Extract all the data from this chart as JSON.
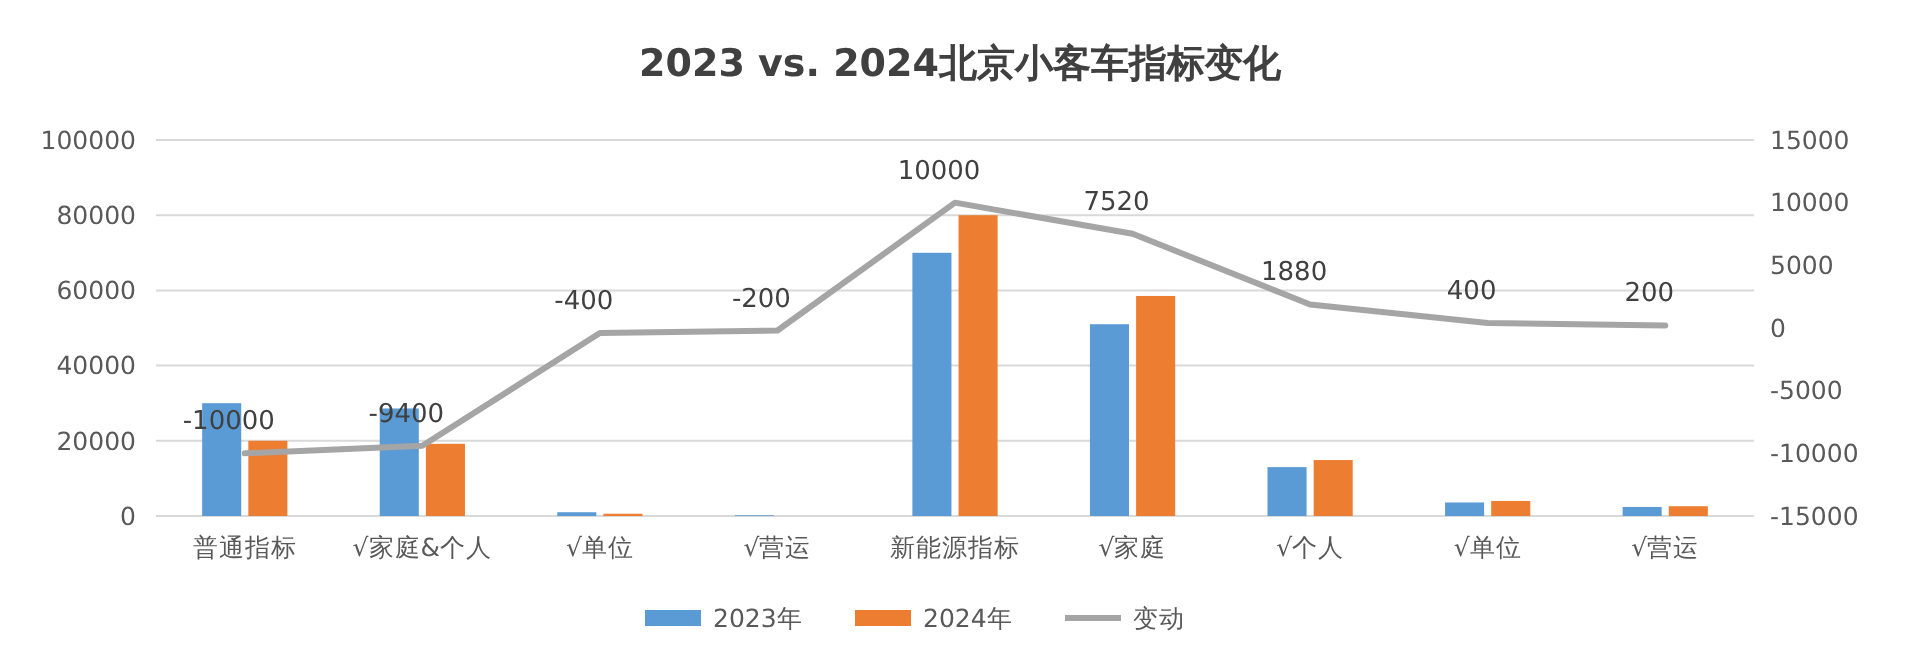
{
  "chart_data": {
    "type": "bar",
    "title": "2023 vs. 2024北京小客车指标变化",
    "categories": [
      "普通指标",
      "√家庭&个人",
      "√单位",
      "√营运",
      "新能源指标",
      "√家庭",
      "√个人",
      "√单位",
      "√营运"
    ],
    "series": [
      {
        "name": "2023年",
        "color": "#5b9bd5",
        "values": [
          30000,
          28600,
          1000,
          200,
          70000,
          51000,
          13000,
          3600,
          2400
        ]
      },
      {
        "name": "2024年",
        "color": "#ed7d31",
        "values": [
          20000,
          19200,
          600,
          0,
          80000,
          58520,
          14880,
          4000,
          2600
        ]
      },
      {
        "name": "变动",
        "type": "line",
        "axis": "y2",
        "color": "#a5a5a5",
        "values": [
          -10000,
          -9400,
          -400,
          -200,
          10000,
          7520,
          1880,
          400,
          200
        ],
        "data_labels": true
      }
    ],
    "ylim": [
      0,
      100000
    ],
    "yticks": [
      0,
      20000,
      40000,
      60000,
      80000,
      100000
    ],
    "y2lim": [
      -15000,
      15000
    ],
    "y2ticks": [
      -15000,
      -10000,
      -5000,
      0,
      5000,
      10000,
      15000
    ],
    "grid": "y",
    "legend": "bottom",
    "marker": "none"
  }
}
